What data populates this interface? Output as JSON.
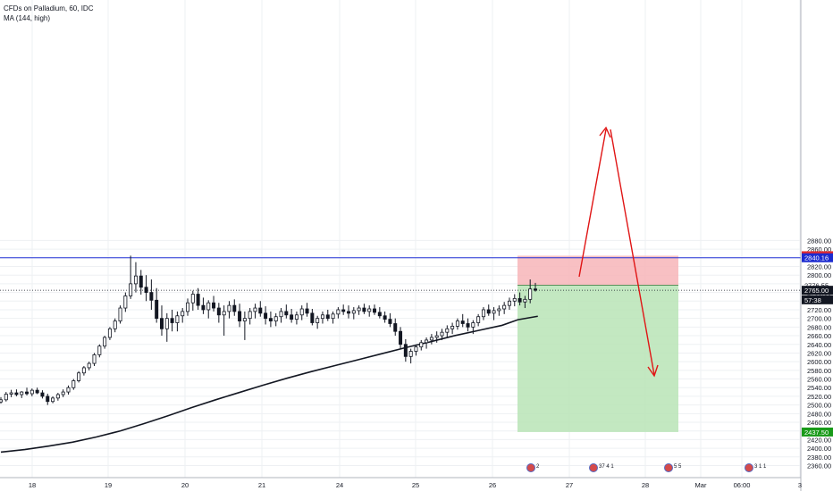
{
  "legend": {
    "symbol_line": "CFDs on Palladium, 60, IDC",
    "ma_line": "MA (144, high)"
  },
  "colors": {
    "up_candle": "#ffffff",
    "down_candle": "#131722",
    "wick": "#131722",
    "ma": "#131722",
    "hline": "#2130d6",
    "stop_zone": "#f7b5b8",
    "target_zone": "#b9e4b6",
    "stop_label": "#e52b2b",
    "hline_label": "#1c2bd0",
    "target_label": "#199a19",
    "price_label": "#ffffff",
    "arrows": "#e01515",
    "grid": "#eef0f3"
  },
  "icons": [
    "event-flag-icon",
    "event-flag-icon",
    "event-flag-icon",
    "event-flag-icon"
  ],
  "chart_data": {
    "type": "candlestick",
    "title": "CFDs on Palladium, 60, IDC",
    "ylim": [
      2350,
      2890
    ],
    "y_ticks": [
      2360,
      2380,
      2400,
      2420,
      2440,
      2460,
      2480,
      2500,
      2520,
      2540,
      2560,
      2580,
      2600,
      2620,
      2640,
      2660,
      2680,
      2700,
      2720,
      2740,
      2760,
      2780,
      2800,
      2820,
      2840,
      2860,
      2880
    ],
    "x_ticks": [
      "18",
      "19",
      "20",
      "21",
      "24",
      "25",
      "26",
      "27",
      "28",
      "Mar",
      "06:00",
      "3"
    ],
    "grid": true,
    "series": [
      {
        "name": "MA (144, high)",
        "type": "line",
        "points": [
          [
            0,
            2391
          ],
          [
            6,
            2397
          ],
          [
            12,
            2405
          ],
          [
            18,
            2414
          ],
          [
            24,
            2426
          ],
          [
            30,
            2440
          ],
          [
            36,
            2457
          ],
          [
            42,
            2475
          ],
          [
            48,
            2494
          ],
          [
            54,
            2512
          ],
          [
            60,
            2529
          ],
          [
            66,
            2546
          ],
          [
            72,
            2562
          ],
          [
            78,
            2577
          ],
          [
            84,
            2591
          ],
          [
            90,
            2605
          ],
          [
            96,
            2619
          ],
          [
            102,
            2633
          ],
          [
            108,
            2646
          ],
          [
            114,
            2660
          ],
          [
            120,
            2672
          ],
          [
            126,
            2684
          ],
          [
            130,
            2697
          ],
          [
            135,
            2705
          ]
        ]
      }
    ],
    "candles": [
      [
        2507,
        2518,
        2503,
        2512
      ],
      [
        2512,
        2530,
        2508,
        2525
      ],
      [
        2525,
        2535,
        2518,
        2528
      ],
      [
        2528,
        2536,
        2520,
        2524
      ],
      [
        2524,
        2532,
        2516,
        2530
      ],
      [
        2530,
        2540,
        2522,
        2526
      ],
      [
        2526,
        2538,
        2520,
        2534
      ],
      [
        2534,
        2540,
        2525,
        2528
      ],
      [
        2528,
        2534,
        2515,
        2520
      ],
      [
        2520,
        2526,
        2500,
        2508
      ],
      [
        2508,
        2520,
        2504,
        2516
      ],
      [
        2516,
        2528,
        2510,
        2524
      ],
      [
        2524,
        2536,
        2518,
        2530
      ],
      [
        2530,
        2545,
        2524,
        2540
      ],
      [
        2540,
        2560,
        2535,
        2556
      ],
      [
        2556,
        2578,
        2552,
        2574
      ],
      [
        2574,
        2590,
        2568,
        2586
      ],
      [
        2586,
        2600,
        2580,
        2596
      ],
      [
        2596,
        2620,
        2590,
        2616
      ],
      [
        2616,
        2640,
        2610,
        2636
      ],
      [
        2636,
        2660,
        2630,
        2656
      ],
      [
        2656,
        2680,
        2650,
        2676
      ],
      [
        2676,
        2700,
        2668,
        2694
      ],
      [
        2694,
        2730,
        2688,
        2724
      ],
      [
        2724,
        2760,
        2715,
        2752
      ],
      [
        2752,
        2845,
        2745,
        2780
      ],
      [
        2780,
        2830,
        2760,
        2798
      ],
      [
        2798,
        2812,
        2755,
        2772
      ],
      [
        2772,
        2800,
        2740,
        2760
      ],
      [
        2760,
        2790,
        2720,
        2742
      ],
      [
        2742,
        2770,
        2690,
        2700
      ],
      [
        2700,
        2730,
        2660,
        2676
      ],
      [
        2676,
        2712,
        2646,
        2700
      ],
      [
        2700,
        2720,
        2670,
        2690
      ],
      [
        2690,
        2716,
        2670,
        2706
      ],
      [
        2706,
        2724,
        2690,
        2716
      ],
      [
        2716,
        2746,
        2706,
        2736
      ],
      [
        2736,
        2764,
        2718,
        2756
      ],
      [
        2756,
        2770,
        2720,
        2730
      ],
      [
        2730,
        2748,
        2710,
        2720
      ],
      [
        2720,
        2742,
        2700,
        2736
      ],
      [
        2736,
        2752,
        2716,
        2724
      ],
      [
        2724,
        2736,
        2690,
        2708
      ],
      [
        2708,
        2730,
        2660,
        2716
      ],
      [
        2716,
        2740,
        2700,
        2730
      ],
      [
        2730,
        2744,
        2706,
        2716
      ],
      [
        2716,
        2734,
        2680,
        2694
      ],
      [
        2694,
        2716,
        2650,
        2700
      ],
      [
        2700,
        2724,
        2686,
        2716
      ],
      [
        2716,
        2734,
        2700,
        2724
      ],
      [
        2724,
        2740,
        2704,
        2712
      ],
      [
        2712,
        2728,
        2686,
        2700
      ],
      [
        2700,
        2716,
        2680,
        2694
      ],
      [
        2694,
        2712,
        2682,
        2704
      ],
      [
        2704,
        2724,
        2690,
        2716
      ],
      [
        2716,
        2732,
        2700,
        2708
      ],
      [
        2708,
        2722,
        2690,
        2698
      ],
      [
        2698,
        2716,
        2686,
        2708
      ],
      [
        2708,
        2730,
        2696,
        2722
      ],
      [
        2722,
        2736,
        2704,
        2712
      ],
      [
        2712,
        2722,
        2684,
        2690
      ],
      [
        2690,
        2706,
        2676,
        2700
      ],
      [
        2700,
        2716,
        2688,
        2708
      ],
      [
        2708,
        2720,
        2694,
        2700
      ],
      [
        2700,
        2716,
        2688,
        2710
      ],
      [
        2710,
        2726,
        2700,
        2720
      ],
      [
        2720,
        2732,
        2708,
        2716
      ],
      [
        2716,
        2730,
        2700,
        2712
      ],
      [
        2712,
        2726,
        2698,
        2718
      ],
      [
        2718,
        2730,
        2708,
        2724
      ],
      [
        2724,
        2734,
        2710,
        2716
      ],
      [
        2716,
        2730,
        2704,
        2722
      ],
      [
        2722,
        2732,
        2708,
        2714
      ],
      [
        2714,
        2726,
        2700,
        2706
      ],
      [
        2706,
        2716,
        2690,
        2698
      ],
      [
        2698,
        2712,
        2680,
        2688
      ],
      [
        2688,
        2700,
        2660,
        2670
      ],
      [
        2670,
        2680,
        2630,
        2640
      ],
      [
        2640,
        2652,
        2600,
        2612
      ],
      [
        2612,
        2630,
        2596,
        2624
      ],
      [
        2624,
        2640,
        2614,
        2634
      ],
      [
        2634,
        2650,
        2626,
        2644
      ],
      [
        2644,
        2656,
        2630,
        2650
      ],
      [
        2650,
        2664,
        2640,
        2656
      ],
      [
        2656,
        2670,
        2644,
        2660
      ],
      [
        2660,
        2676,
        2650,
        2668
      ],
      [
        2668,
        2684,
        2656,
        2676
      ],
      [
        2676,
        2690,
        2664,
        2682
      ],
      [
        2682,
        2700,
        2674,
        2694
      ],
      [
        2694,
        2710,
        2680,
        2688
      ],
      [
        2688,
        2700,
        2670,
        2680
      ],
      [
        2680,
        2696,
        2664,
        2690
      ],
      [
        2690,
        2710,
        2682,
        2704
      ],
      [
        2704,
        2726,
        2696,
        2720
      ],
      [
        2720,
        2732,
        2706,
        2712
      ],
      [
        2712,
        2726,
        2696,
        2718
      ],
      [
        2718,
        2730,
        2706,
        2722
      ],
      [
        2722,
        2738,
        2710,
        2730
      ],
      [
        2730,
        2748,
        2720,
        2740
      ],
      [
        2740,
        2756,
        2728,
        2746
      ],
      [
        2746,
        2760,
        2730,
        2738
      ],
      [
        2738,
        2752,
        2724,
        2744
      ],
      [
        2744,
        2790,
        2735,
        2768
      ],
      [
        2768,
        2782,
        2762,
        2765
      ]
    ],
    "levels": [
      {
        "name": "upper-line",
        "value": 2840.16,
        "label": "2840.16"
      },
      {
        "name": "stop-level",
        "value": 2844.84,
        "label": "2844.84"
      },
      {
        "name": "entry-level",
        "value": 2776.55,
        "label": "2776.55"
      },
      {
        "name": "last-price",
        "value": 2765.0,
        "label": "2765.00"
      },
      {
        "name": "target-level",
        "value": 2437.5,
        "label": "2437.50"
      }
    ],
    "countdown_label": "57:38",
    "event_flags": [
      {
        "label": "2"
      },
      {
        "label": "37 4 1"
      },
      {
        "label": "5 5"
      },
      {
        "label": "3 1 1"
      }
    ]
  }
}
